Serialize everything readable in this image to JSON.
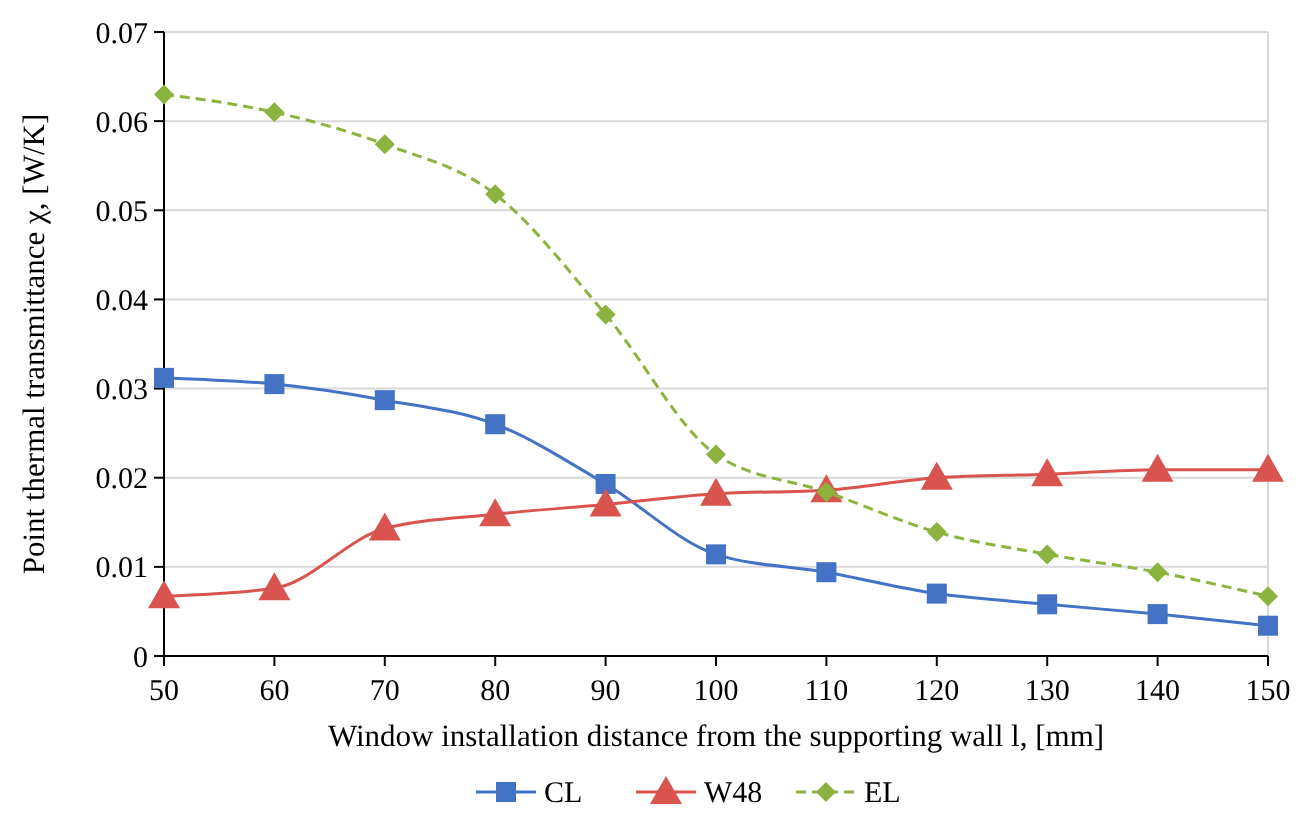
{
  "chart_data": {
    "type": "line",
    "xlabel": "Window installation distance from the supporting wall l, [mm]",
    "ylabel": "Point thermal transmittance χ, [W/K]",
    "x": [
      50,
      60,
      70,
      80,
      90,
      100,
      110,
      120,
      130,
      140,
      150
    ],
    "xlim": [
      50,
      150
    ],
    "xticks": [
      50,
      60,
      70,
      80,
      90,
      100,
      110,
      120,
      130,
      140,
      150
    ],
    "ylim": [
      0,
      0.07
    ],
    "yticks": [
      0,
      0.01,
      0.02,
      0.03,
      0.04,
      0.05,
      0.06,
      0.07
    ],
    "grid": "y",
    "legend": "bottom",
    "series": [
      {
        "name": "CL",
        "color": "#4472c4",
        "marker": "square",
        "line_style": "solid",
        "values": [
          0.0312,
          0.0305,
          0.0287,
          0.026,
          0.0193,
          0.0114,
          0.0094,
          0.007,
          0.0058,
          0.0047,
          0.0034
        ]
      },
      {
        "name": "W48",
        "color": "#d9534f",
        "marker": "triangle",
        "line_style": "solid",
        "values": [
          0.0067,
          0.0076,
          0.0143,
          0.0159,
          0.017,
          0.0182,
          0.0186,
          0.02,
          0.0204,
          0.0209,
          0.0209
        ]
      },
      {
        "name": "EL",
        "color": "#8db33f",
        "marker": "diamond",
        "line_style": "dashed",
        "values": [
          0.063,
          0.061,
          0.0574,
          0.0518,
          0.0383,
          0.0226,
          0.0184,
          0.0139,
          0.0114,
          0.0094,
          0.0067
        ]
      }
    ]
  }
}
